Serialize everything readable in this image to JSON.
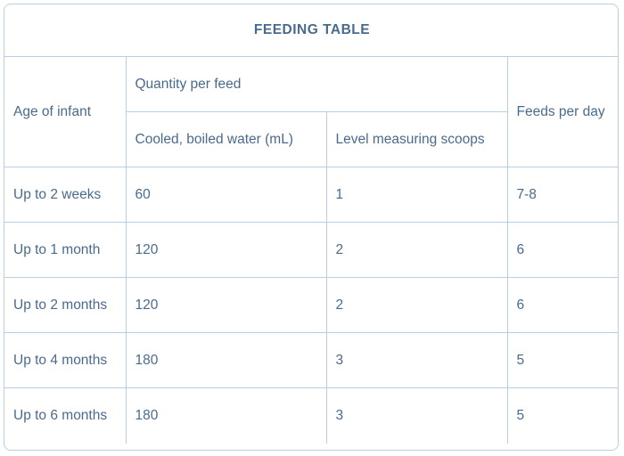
{
  "table": {
    "title": "FEEDING TABLE",
    "headers": {
      "age": "Age of infant",
      "quantity_group": "Quantity per feed",
      "water": "Cooled, boiled water (mL)",
      "scoops": "Level measuring scoops",
      "feeds": "Feeds per day"
    },
    "rows": [
      {
        "age": "Up to 2 weeks",
        "water": "60",
        "scoops": "1",
        "feeds": "7-8"
      },
      {
        "age": "Up to 1 month",
        "water": "120",
        "scoops": "2",
        "feeds": "6"
      },
      {
        "age": "Up to 2 months",
        "water": "120",
        "scoops": "2",
        "feeds": "6"
      },
      {
        "age": "Up to 4 months",
        "water": "180",
        "scoops": "3",
        "feeds": "5"
      },
      {
        "age": "Up to 6 months",
        "water": "180",
        "scoops": "3",
        "feeds": "5"
      }
    ]
  },
  "colors": {
    "text": "#4a6a8c",
    "border": "#b7cfe0"
  }
}
